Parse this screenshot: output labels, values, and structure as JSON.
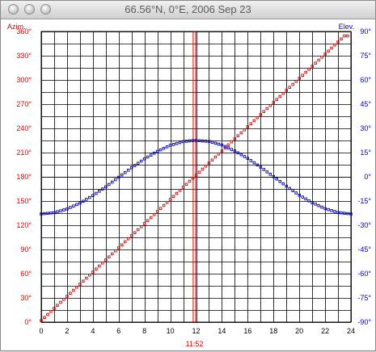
{
  "window": {
    "title": "66.56°N, 0°E, 2006 Sep 23"
  },
  "colors": {
    "azimuth": "#dd0000",
    "elevation": "#0000cc",
    "grid": "#000000",
    "marker": "#dd0000"
  },
  "chart_data": {
    "type": "scatter",
    "title": "66.56°N, 0°E, 2006 Sep 23",
    "left_axis_label": "Azim.",
    "right_axis_label": "Elev.",
    "x_ticks": [
      "0",
      "2",
      "4",
      "6",
      "8",
      "10",
      "12",
      "14",
      "16",
      "18",
      "20",
      "22",
      "24"
    ],
    "left_ticks": [
      "0°",
      "30°",
      "60°",
      "90°",
      "120°",
      "150°",
      "180°",
      "210°",
      "240°",
      "270°",
      "300°",
      "330°",
      "360°"
    ],
    "right_ticks": [
      "-90°",
      "-75°",
      "-60°",
      "-45°",
      "-30°",
      "-15°",
      "0°",
      "15°",
      "30°",
      "45°",
      "60°",
      "75°",
      "90°"
    ],
    "xlim": [
      0,
      24
    ],
    "azimuth_ylim": [
      0,
      360
    ],
    "elevation_ylim": [
      -90,
      90
    ],
    "marker_time": 11.87,
    "marker_label": "11:52",
    "horizon_elevation": 0,
    "grid": true,
    "series": [
      {
        "name": "Azim.",
        "axis": "left",
        "x": [
          0,
          0.5,
          1,
          1.5,
          2,
          2.5,
          3,
          3.5,
          4,
          4.5,
          5,
          5.5,
          6,
          6.5,
          7,
          7.5,
          8,
          8.5,
          9,
          9.5,
          10,
          10.5,
          11,
          11.5,
          12,
          12.5,
          13,
          13.5,
          14,
          14.5,
          15,
          15.5,
          16,
          16.5,
          17,
          17.5,
          18,
          18.5,
          19,
          19.5,
          20,
          20.5,
          21,
          21.5,
          22,
          22.5,
          23,
          23.5
        ],
        "y": [
          2,
          9.5,
          17,
          24.5,
          32,
          39.5,
          47,
          54.5,
          62,
          69.5,
          77,
          84.5,
          92,
          99.5,
          107,
          114.5,
          122,
          129.5,
          137,
          144.5,
          152,
          159.5,
          167,
          174.5,
          182,
          189.5,
          197,
          204.5,
          212,
          219.5,
          227,
          234.5,
          242,
          249.5,
          257,
          264.5,
          272,
          279.5,
          287,
          294.5,
          302,
          309.5,
          317,
          324.5,
          332,
          339.5,
          347,
          354.5
        ]
      },
      {
        "name": "Elev.",
        "axis": "right",
        "x": [
          0,
          1,
          2,
          3,
          4,
          5,
          6,
          7,
          8,
          9,
          10,
          11,
          11.87,
          13,
          14,
          15,
          16,
          17,
          18,
          19,
          20,
          21,
          22,
          23,
          24
        ],
        "y": [
          -23,
          -22.2,
          -19.9,
          -16.3,
          -11.6,
          -6.2,
          -0.3,
          5.6,
          11.1,
          15.8,
          19.5,
          21.8,
          22.6,
          21.9,
          19.7,
          16.0,
          11.4,
          6.0,
          0.1,
          -5.8,
          -11.4,
          -16.0,
          -19.7,
          -22.1,
          -23
        ]
      }
    ]
  }
}
